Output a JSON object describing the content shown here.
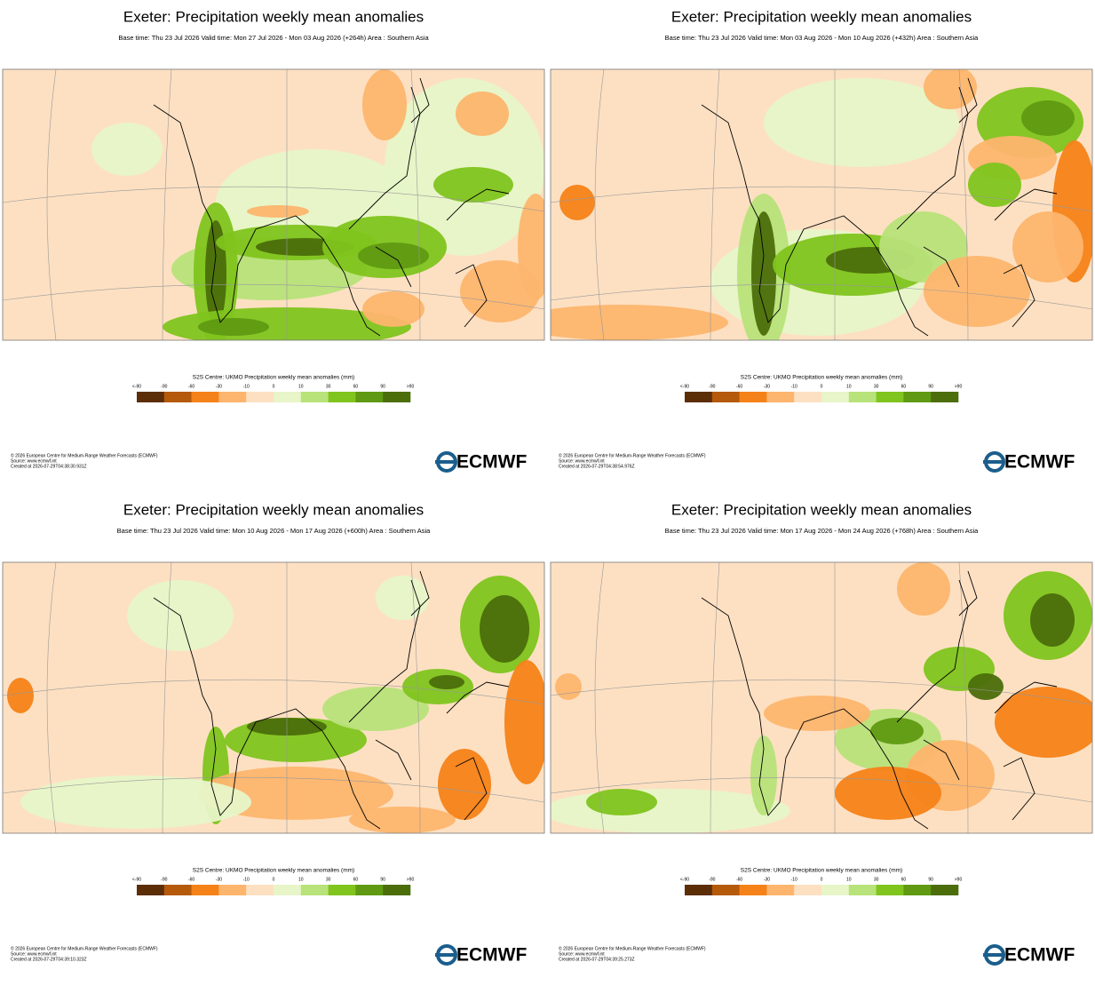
{
  "panels": [
    {
      "title": "Exeter: Precipitation weekly mean anomalies",
      "subtitle": "Base time: Thu 23 Jul 2026 Valid time: Mon 27 Jul 2026 - Mon 03 Aug 2026 (+264h) Area : Southern Asia",
      "colorbar_title": "S2S Centre: UKMO Precipitation weekly mean anomalies (mm)",
      "colorbar_labels": [
        "<-90",
        "-90",
        "-60",
        "-30",
        "-10",
        "0",
        "10",
        "30",
        "60",
        "90",
        ">90"
      ],
      "footer": [
        "© 2026 European Centre for Medium-Range Weather Forecasts (ECMWF)",
        "Source: www.ecmwf.int",
        "Created at 2026-07-29T04:38:30.931Z"
      ],
      "logo": "ECMWF"
    },
    {
      "title": "Exeter: Precipitation weekly mean anomalies",
      "subtitle": "Base time: Thu 23 Jul 2026 Valid time: Mon 03 Aug 2026 - Mon 10 Aug 2026 (+432h) Area : Southern Asia",
      "colorbar_title": "S2S Centre: UKMO Precipitation weekly mean anomalies (mm)",
      "colorbar_labels": [
        "<-90",
        "-90",
        "-60",
        "-30",
        "-10",
        "0",
        "10",
        "30",
        "60",
        "90",
        ">90"
      ],
      "footer": [
        "© 2026 European Centre for Medium-Range Weather Forecasts (ECMWF)",
        "Source: www.ecmwf.int",
        "Created at 2026-07-29T04:38:54.976Z"
      ],
      "logo": "ECMWF"
    },
    {
      "title": "Exeter: Precipitation weekly mean anomalies",
      "subtitle": "Base time: Thu 23 Jul 2026 Valid time: Mon 10 Aug 2026 - Mon 17 Aug 2026 (+600h) Area : Southern Asia",
      "colorbar_title": "S2S Centre: UKMO Precipitation weekly mean anomalies (mm)",
      "colorbar_labels": [
        "<-90",
        "-90",
        "-60",
        "-30",
        "-10",
        "0",
        "10",
        "30",
        "60",
        "90",
        ">90"
      ],
      "footer": [
        "© 2026 European Centre for Medium-Range Weather Forecasts (ECMWF)",
        "Source: www.ecmwf.int",
        "Created at 2026-07-29T04:39:10.323Z"
      ],
      "logo": "ECMWF"
    },
    {
      "title": "Exeter: Precipitation weekly mean anomalies",
      "subtitle": "Base time: Thu 23 Jul 2026 Valid time: Mon 17 Aug 2026 - Mon 24 Aug 2026 (+768h) Area : Southern Asia",
      "colorbar_title": "S2S Centre: UKMO Precipitation weekly mean anomalies (mm)",
      "colorbar_labels": [
        "<-90",
        "-90",
        "-60",
        "-30",
        "-10",
        "0",
        "10",
        "30",
        "60",
        "90",
        ">90"
      ],
      "footer": [
        "© 2026 European Centre for Medium-Range Weather Forecasts (ECMWF)",
        "Source: www.ecmwf.int",
        "Created at 2026-07-29T04:39:25.273Z"
      ],
      "logo": "ECMWF"
    }
  ],
  "colors": [
    "#5c2e08",
    "#b5590a",
    "#f58218",
    "#fdb56e",
    "#fde0c2",
    "#e7f5c8",
    "#b8e27a",
    "#80c41e",
    "#5f9a12",
    "#4b6e0b"
  ]
}
